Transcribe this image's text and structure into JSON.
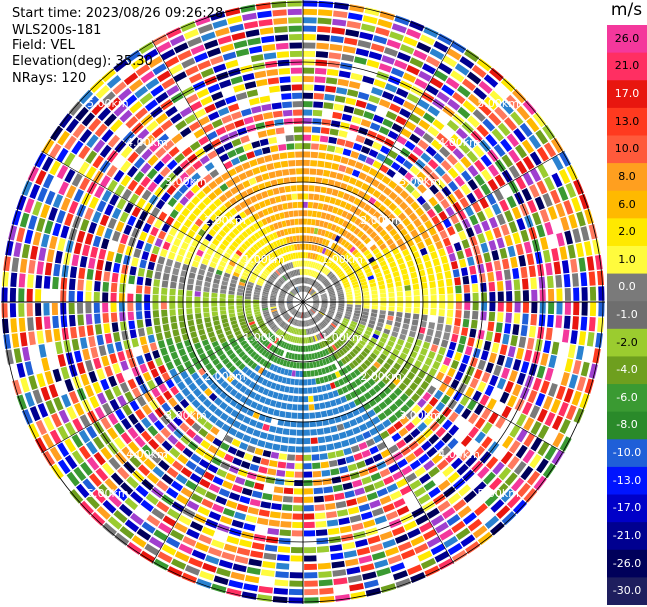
{
  "info": {
    "start_time": "Start time: 2023/08/26 09:26:28",
    "instrument": "WLS200s-181",
    "field": "Field: VEL",
    "elevation": "Elevation(deg): 35.30",
    "nrays": "NRays: 120"
  },
  "colorbar": {
    "unit": "m/s",
    "ticks": [
      "26.0",
      "21.0",
      "17.0",
      "13.0",
      "10.0",
      "8.0",
      "6.0",
      "2.0",
      "1.0",
      "0.0",
      "-1.0",
      "-2.0",
      "-4.0",
      "-6.0",
      "-8.0",
      "-10.0",
      "-13.0",
      "-17.0",
      "-21.0",
      "-26.0",
      "-30.0"
    ],
    "colors": [
      "#f4389c",
      "#ff2f62",
      "#e8160f",
      "#ff3a1f",
      "#ff5a3b",
      "#ff7a5e",
      "#ff9f1f",
      "#ffb900",
      "#ffe900",
      "#fffb3d",
      "#7a7a7a",
      "#6e6e6e",
      "#9bcc2f",
      "#6e9f1e",
      "#3a9a32",
      "#2a8a2a",
      "#2a82d0",
      "#1f5fd8",
      "#0014ff",
      "#0000c8",
      "#000090",
      "#00005a",
      "#1e1e5e"
    ]
  },
  "chart_data": {
    "type": "heatmap",
    "projection": "polar",
    "field": "VEL",
    "units": "m/s",
    "n_rays": 120,
    "elevation_deg": 35.3,
    "range_labels": [
      "1.00km",
      "2.00km",
      "3.00km",
      "4.00km",
      "5.00km"
    ],
    "value_range": [
      -30.0,
      26.0
    ]
  }
}
